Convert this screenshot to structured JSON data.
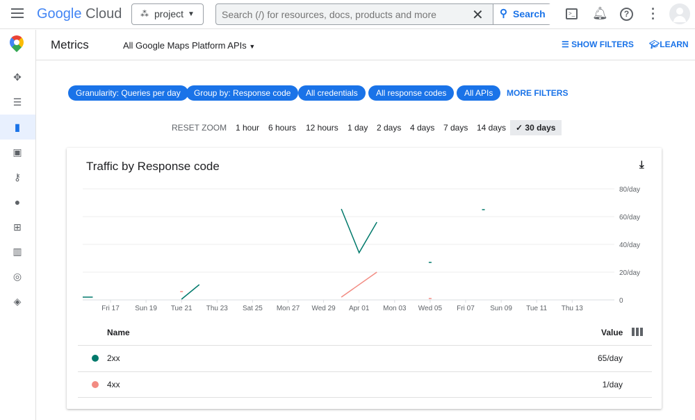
{
  "header": {
    "brand_google": "Google",
    "brand_cloud": "Cloud",
    "project": "project",
    "search_placeholder": "Search (/) for resources, docs, products and more",
    "search_button": "Search"
  },
  "subheader": {
    "title": "Metrics",
    "api_select": "All Google Maps Platform APIs",
    "show_filters": "SHOW FILTERS",
    "learn": "LEARN"
  },
  "filters": {
    "chips": [
      "Granularity: Queries per day",
      "Group by: Response code",
      "All credentials",
      "All response codes",
      "All APIs"
    ],
    "more": "MORE FILTERS"
  },
  "zoom": {
    "reset": "RESET ZOOM",
    "options": [
      "1 hour",
      "6 hours",
      "12 hours",
      "1 day",
      "2 days",
      "4 days",
      "7 days",
      "14 days",
      "30 days"
    ],
    "selected": "30 days"
  },
  "card": {
    "title": "Traffic by Response code"
  },
  "chart_data": {
    "type": "line",
    "title": "Traffic by Response code",
    "x_tick_labels": [
      "Fri 17",
      "Sun 19",
      "Tue 21",
      "Thu 23",
      "Sat 25",
      "Mon 27",
      "Wed 29",
      "Apr 01",
      "Mon 03",
      "Wed 05",
      "Fri 07",
      "Sun 09",
      "Tue 11",
      "Thu 13"
    ],
    "y_tick_labels": [
      "0",
      "20/day",
      "40/day",
      "60/day",
      "80/day"
    ],
    "ylim": [
      0,
      80
    ],
    "grid": true,
    "series": [
      {
        "name": "2xx",
        "color": "#00796b",
        "segments": [
          [
            [
              "Mar 15",
              2
            ],
            [
              "Mar 16",
              2
            ]
          ],
          [
            [
              "Mar 21",
              0.5
            ],
            [
              "Mar 22",
              11
            ]
          ],
          [
            [
              "Mar 30",
              65.5
            ],
            [
              "Mar 31",
              34
            ],
            [
              "Apr 01",
              56
            ]
          ],
          [
            [
              "Apr 04",
              27
            ]
          ],
          [
            [
              "Apr 07",
              65
            ]
          ]
        ]
      },
      {
        "name": "4xx",
        "color": "#f28b82",
        "segments": [
          [
            [
              "Mar 21",
              6
            ]
          ],
          [
            [
              "Mar 30",
              2
            ],
            [
              "Apr 01",
              20
            ]
          ],
          [
            [
              "Apr 04",
              1
            ]
          ]
        ]
      }
    ]
  },
  "table": {
    "col_name": "Name",
    "col_value": "Value",
    "rows": [
      {
        "name": "2xx",
        "value": "65/day",
        "color": "#00796b"
      },
      {
        "name": "4xx",
        "value": "1/day",
        "color": "#f28b82"
      }
    ]
  }
}
